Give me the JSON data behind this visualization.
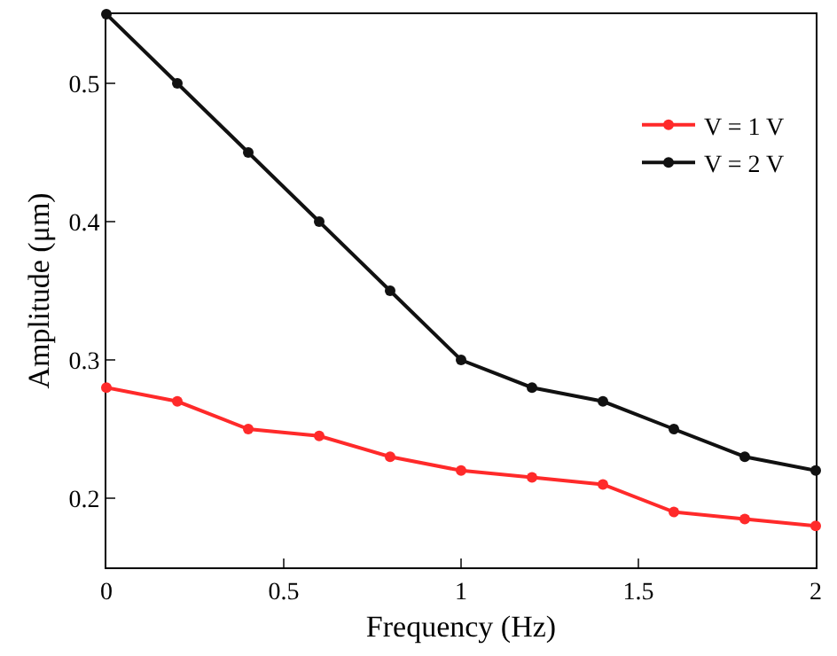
{
  "chart_data": {
    "type": "line",
    "xlabel": "Frequency (Hz)",
    "ylabel": "Amplitude (μm)",
    "x": [
      0,
      0.2,
      0.4,
      0.6,
      0.8,
      1,
      1.2,
      1.4,
      1.6,
      1.8,
      2
    ],
    "series": [
      {
        "name": "V = 1 V",
        "color": "#ff2a2a",
        "values": [
          0.28,
          0.27,
          0.25,
          0.245,
          0.23,
          0.22,
          0.215,
          0.21,
          0.19,
          0.185,
          0.18
        ]
      },
      {
        "name": "V = 2 V",
        "color": "#111111",
        "values": [
          0.55,
          0.5,
          0.45,
          0.4,
          0.35,
          0.3,
          0.28,
          0.27,
          0.25,
          0.23,
          0.22
        ]
      }
    ],
    "xlim": [
      0,
      2
    ],
    "xticks": [
      0,
      0.5,
      1,
      1.5,
      2
    ],
    "ylim": [
      0.15,
      0.55
    ],
    "yticks": [
      0.2,
      0.3,
      0.4,
      0.5
    ],
    "grid": false,
    "legend": "top right",
    "marker": "circle",
    "line_style": "solid"
  }
}
